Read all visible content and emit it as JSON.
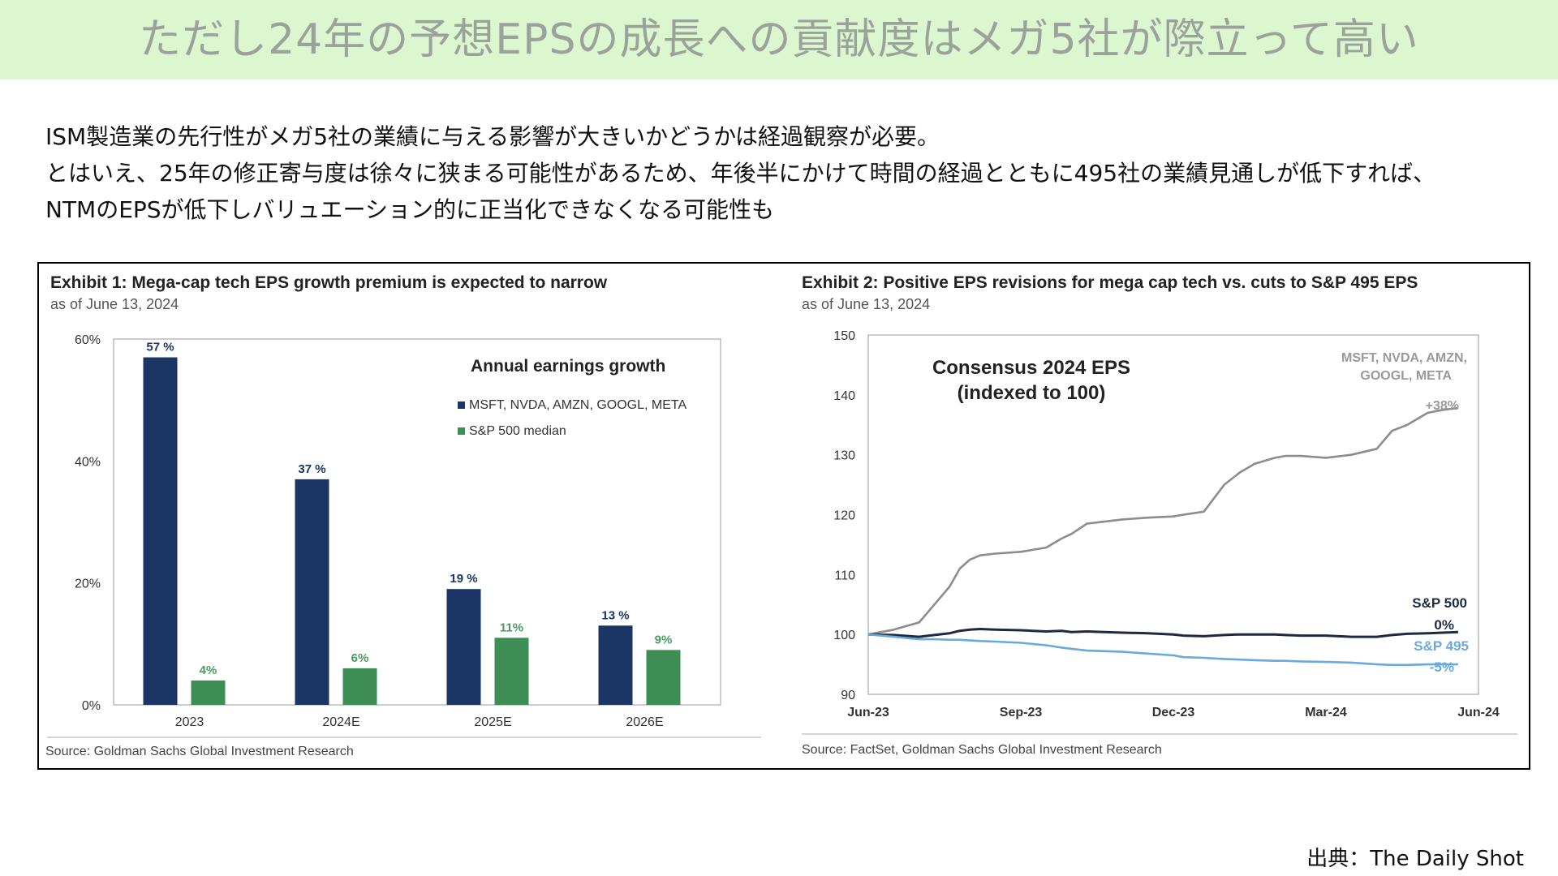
{
  "header": {
    "title": "ただし24年の予想EPSの成長への貢献度はメガ5社が際立って高い"
  },
  "intro": {
    "lines": [
      "ISM製造業の先行性がメガ5社の業績に与える影響が大きいかどうかは経過観察が必要。",
      "とはいえ、25年の修正寄与度は徐々に狭まる可能性があるため、年後半にかけて時間の経過とともに495社の業績見通しが低下すれば、",
      "NTMのEPSが低下しバリュエーション的に正当化できなくなる可能性も"
    ]
  },
  "colors": {
    "mega": "#1b3564",
    "sp500": "#3e8d55",
    "sp500_label": "#4c9a5f",
    "line_mega": "#8c8c8c",
    "line_sp500": "#1d2a3f",
    "line_sp495": "#6aa9dc"
  },
  "chart_data": [
    {
      "type": "bar",
      "title": "Exhibit 1: Mega-cap tech EPS growth premium is expected to narrow",
      "subtitle": "as of June 13, 2024",
      "inset_title": "Annual earnings growth",
      "categories": [
        "2023",
        "2024E",
        "2025E",
        "2026E"
      ],
      "series": [
        {
          "name": "MSFT, NVDA, AMZN, GOOGL, META",
          "values": [
            57,
            37,
            19,
            13
          ],
          "labels": [
            "57 %",
            "37 %",
            "19 %",
            "13 %"
          ]
        },
        {
          "name": "S&P 500 median",
          "values": [
            4,
            6,
            11,
            9
          ],
          "labels": [
            "4%",
            "6%",
            "11%",
            "9%"
          ]
        }
      ],
      "yticks": [
        "0%",
        "20%",
        "40%",
        "60%"
      ],
      "ylim": [
        0,
        60
      ],
      "source": "Source: Goldman Sachs Global Investment Research"
    },
    {
      "type": "line",
      "title": "Exhibit 2: Positive EPS revisions for mega cap tech vs. cuts to S&P 495 EPS",
      "subtitle": "as of June 13, 2024",
      "inset_title": [
        "Consensus 2024 EPS",
        "(indexed to 100)"
      ],
      "xticks": [
        "Jun-23",
        "Sep-23",
        "Dec-23",
        "Mar-24",
        "Jun-24"
      ],
      "yticks": [
        "90",
        "100",
        "110",
        "120",
        "130",
        "140",
        "150"
      ],
      "ylim": [
        90,
        150
      ],
      "x_months": [
        0,
        0.5,
        1,
        1.3,
        1.6,
        1.8,
        2,
        2.2,
        2.5,
        3,
        3.5,
        3.8,
        4,
        4.3,
        5,
        5.5,
        6,
        6.2,
        6.6,
        7,
        7.3,
        7.6,
        8,
        8.2,
        8.5,
        9,
        9.5,
        10,
        10.3,
        10.6,
        11,
        11.3,
        11.6
      ],
      "series": [
        {
          "name": "MSFT, NVDA, AMZN, GOOGL, META",
          "end_label": "+38%",
          "values": [
            100,
            100.8,
            102,
            105,
            108,
            111,
            112.5,
            113.2,
            113.5,
            113.8,
            114.5,
            116,
            116.8,
            118.5,
            119.2,
            119.5,
            119.7,
            120,
            120.5,
            125,
            127,
            128.5,
            129.5,
            129.8,
            129.8,
            129.5,
            130,
            131,
            134,
            135,
            137,
            137.5,
            137.8
          ]
        },
        {
          "name": "S&P 500",
          "end_label": "0%",
          "values": [
            100,
            99.9,
            99.6,
            99.9,
            100.2,
            100.6,
            100.8,
            100.9,
            100.8,
            100.7,
            100.5,
            100.6,
            100.4,
            100.5,
            100.3,
            100.2,
            100,
            99.8,
            99.7,
            99.9,
            100,
            100,
            100,
            99.9,
            99.8,
            99.8,
            99.6,
            99.6,
            99.9,
            100.1,
            100.2,
            100.3,
            100.4
          ]
        },
        {
          "name": "S&P 495",
          "end_label": "-5%",
          "values": [
            100,
            99.6,
            99.2,
            99.2,
            99.1,
            99.1,
            99,
            98.9,
            98.8,
            98.6,
            98.2,
            97.8,
            97.6,
            97.3,
            97.1,
            96.8,
            96.5,
            96.2,
            96.1,
            95.9,
            95.8,
            95.7,
            95.6,
            95.6,
            95.5,
            95.4,
            95.3,
            95,
            94.9,
            94.9,
            95,
            95,
            95
          ]
        }
      ],
      "source": "Source: FactSet, Goldman Sachs Global Investment Research"
    }
  ],
  "footer": {
    "credit": "出典：The Daily Shot"
  }
}
